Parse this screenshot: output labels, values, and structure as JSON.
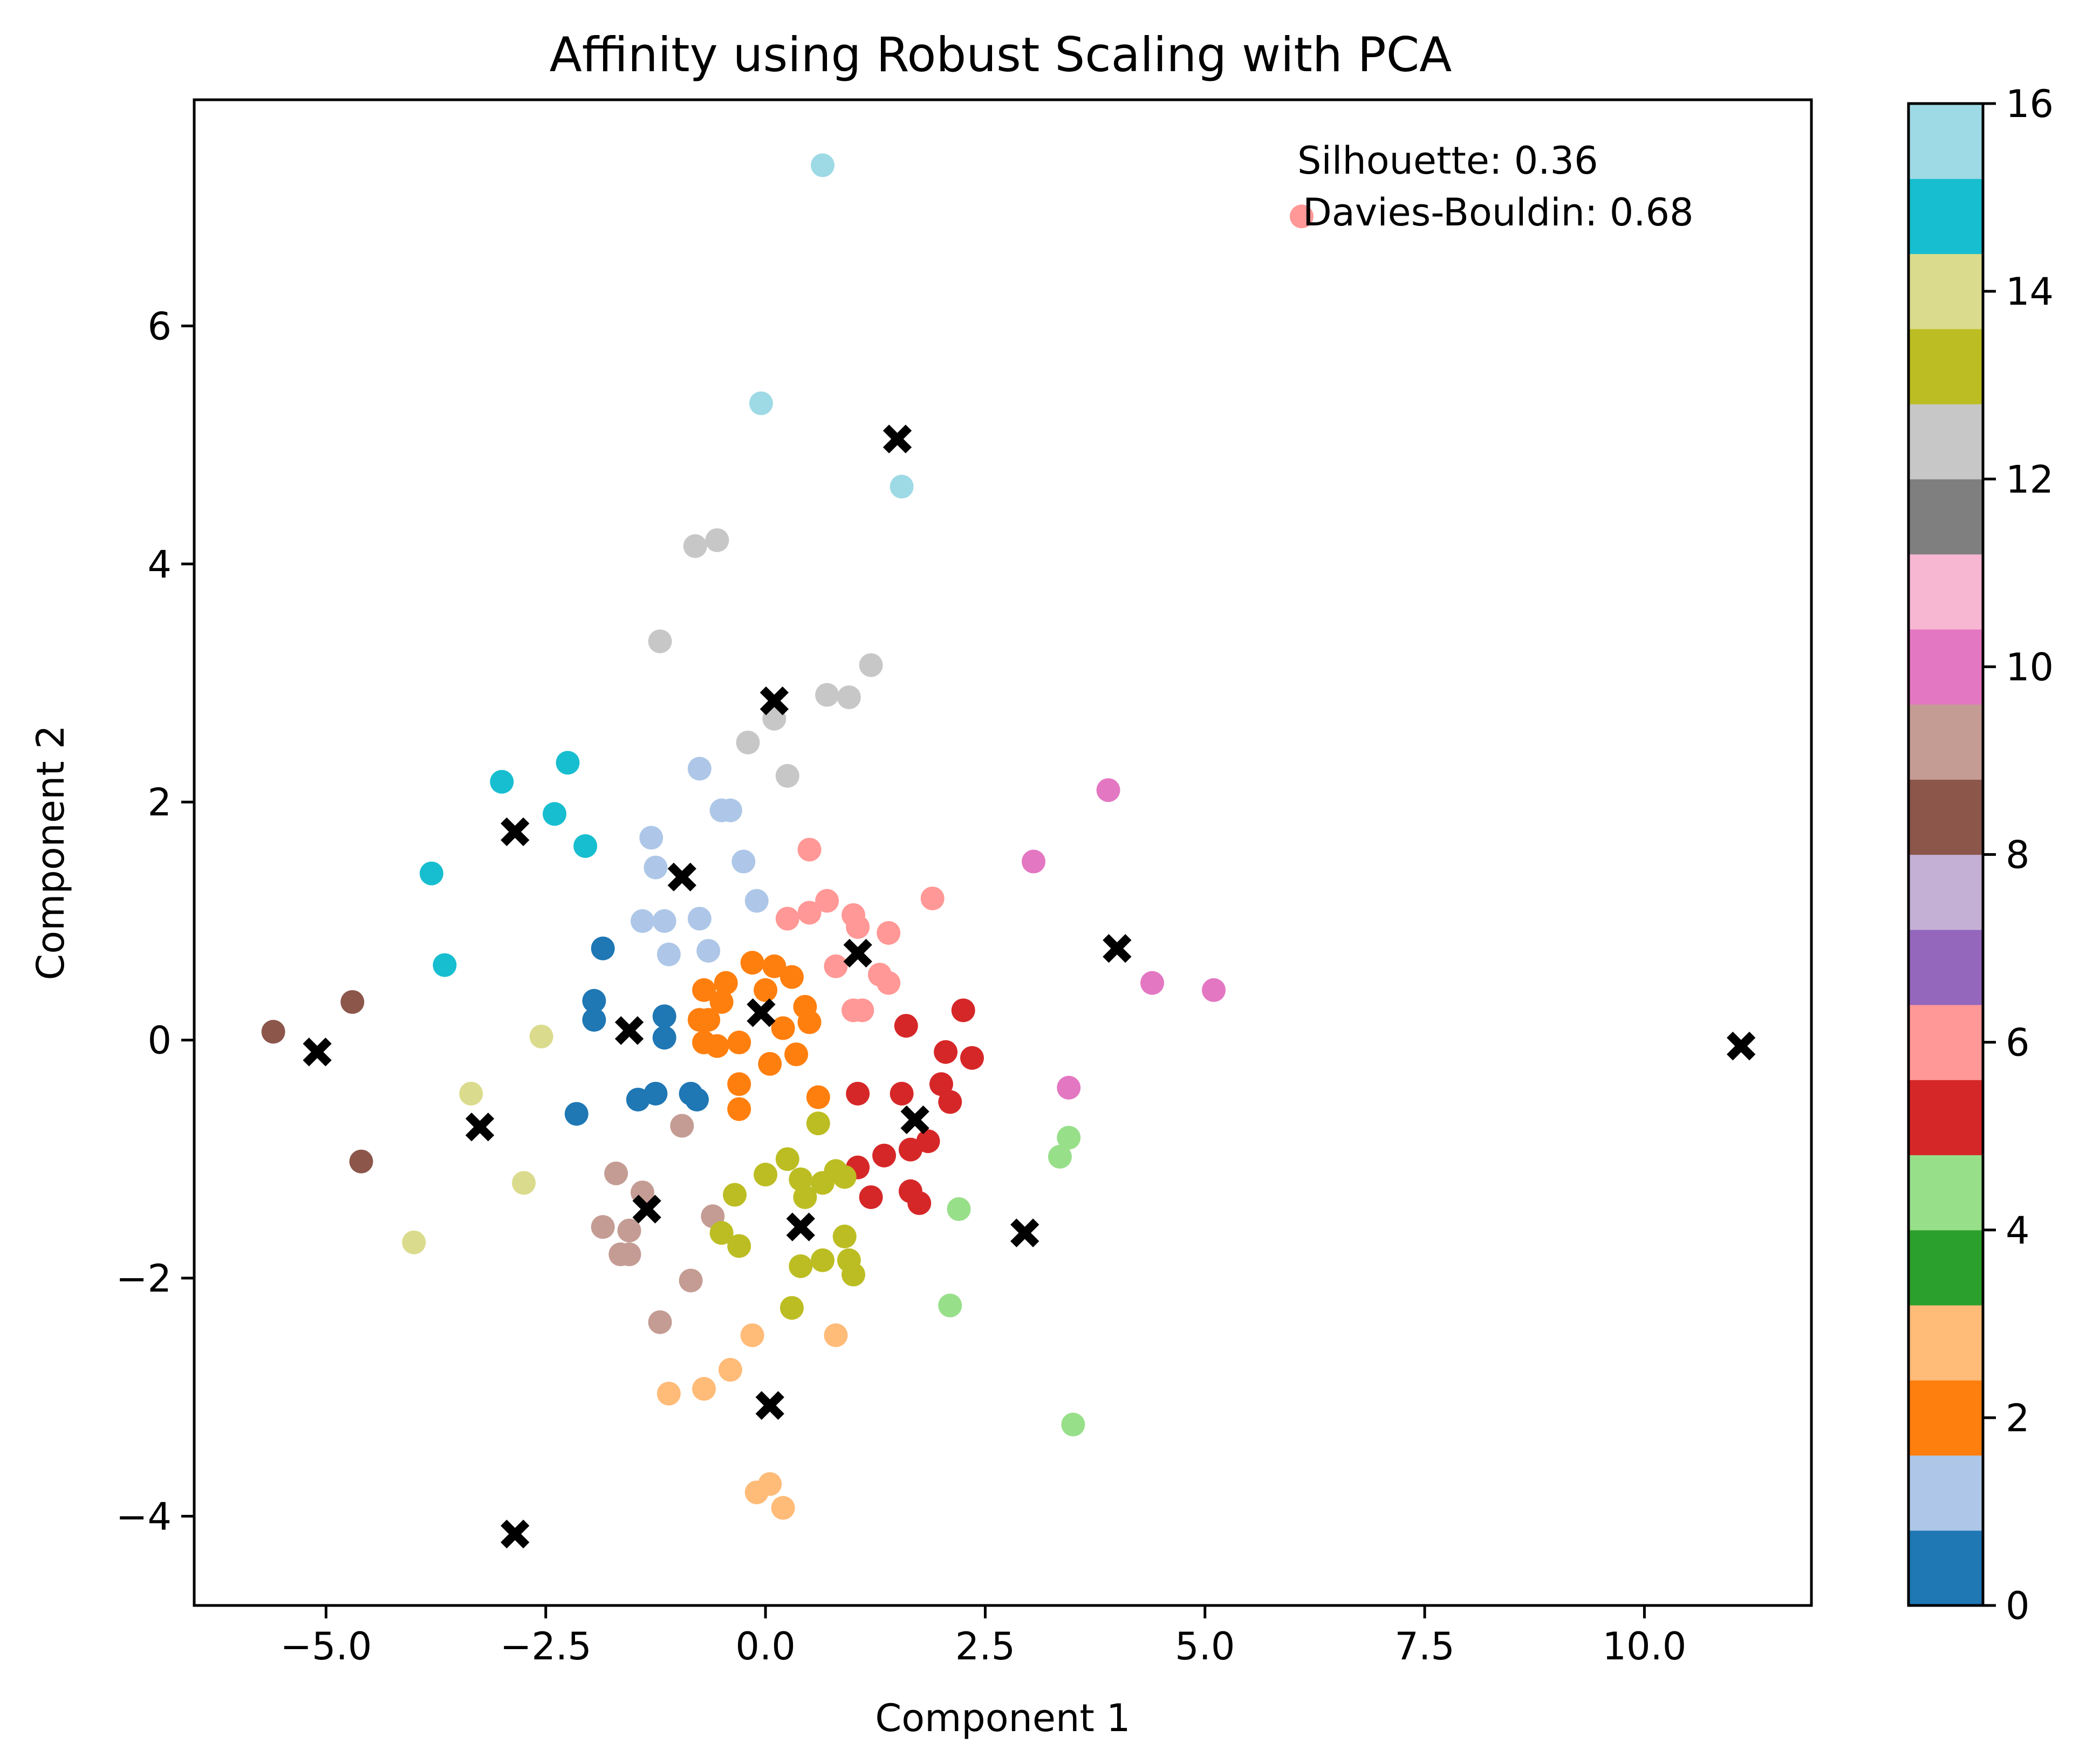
{
  "chart_data": {
    "type": "scatter",
    "title": "Affinity using Robust Scaling with PCA",
    "xlabel": "Component 1",
    "ylabel": "Component 2",
    "xlim": [
      -6.5,
      11.9
    ],
    "ylim": [
      -4.75,
      7.9
    ],
    "xticks": [
      -5.0,
      -2.5,
      0.0,
      2.5,
      5.0,
      7.5,
      10.0
    ],
    "xtick_labels": [
      "−5.0",
      "−2.5",
      "0.0",
      "2.5",
      "5.0",
      "7.5",
      "10.0"
    ],
    "yticks": [
      -4,
      -2,
      0,
      2,
      4,
      6
    ],
    "ytick_labels": [
      "−4",
      "−2",
      "0",
      "2",
      "4",
      "6"
    ],
    "grid": false,
    "colormap": "tab20",
    "colorbar": {
      "range": [
        0,
        16
      ],
      "ticks": [
        0,
        2,
        4,
        6,
        8,
        10,
        12,
        14,
        16
      ],
      "tick_labels": [
        "0",
        "2",
        "4",
        "6",
        "8",
        "10",
        "12",
        "14",
        "16"
      ],
      "colors": [
        "#1f77b4",
        "#aec7e8",
        "#ff7f0e",
        "#ffbb78",
        "#2ca02c",
        "#98df8a",
        "#d62728",
        "#ff9896",
        "#9467bd",
        "#c5b0d5",
        "#8c564b",
        "#c49c94",
        "#e377c2",
        "#f7b6d2",
        "#7f7f7f",
        "#c7c7c7",
        "#bcbd22",
        "#dbdb8d",
        "#17becf",
        "#9edae5"
      ]
    },
    "annotations": [
      "Silhouette: 0.36",
      "Davies-Bouldin: 0.68"
    ],
    "cluster_colors": {
      "0": "#1f77b4",
      "1": "#aec7e8",
      "2": "#ff7f0e",
      "3": "#ffbb78",
      "4": "#98df8a",
      "5": "#d62728",
      "6": "#ff9896",
      "8": "#8c564b",
      "9": "#c49c94",
      "10": "#e377c2",
      "12": "#c7c7c7",
      "13": "#bcbd22",
      "14": "#dbdb8d",
      "15": "#17becf",
      "16": "#9edae5"
    },
    "points": [
      {
        "x": 0.65,
        "y": 7.35,
        "c": 16
      },
      {
        "x": -0.05,
        "y": 5.35,
        "c": 16
      },
      {
        "x": 1.55,
        "y": 4.65,
        "c": 16
      },
      {
        "x": 6.1,
        "y": 6.92,
        "c": 6
      },
      {
        "x": -0.8,
        "y": 4.15,
        "c": 12
      },
      {
        "x": -0.55,
        "y": 4.2,
        "c": 12
      },
      {
        "x": -1.2,
        "y": 3.35,
        "c": 12
      },
      {
        "x": 1.2,
        "y": 3.15,
        "c": 12
      },
      {
        "x": 0.7,
        "y": 2.9,
        "c": 12
      },
      {
        "x": 0.95,
        "y": 2.88,
        "c": 12
      },
      {
        "x": -0.2,
        "y": 2.5,
        "c": 12
      },
      {
        "x": 0.1,
        "y": 2.7,
        "c": 12
      },
      {
        "x": 0.25,
        "y": 2.22,
        "c": 12
      },
      {
        "x": -3.0,
        "y": 2.17,
        "c": 15
      },
      {
        "x": -2.25,
        "y": 2.33,
        "c": 15
      },
      {
        "x": -2.4,
        "y": 1.9,
        "c": 15
      },
      {
        "x": -2.05,
        "y": 1.63,
        "c": 15
      },
      {
        "x": -3.8,
        "y": 1.4,
        "c": 15
      },
      {
        "x": -3.65,
        "y": 0.63,
        "c": 15
      },
      {
        "x": -0.75,
        "y": 2.28,
        "c": 1
      },
      {
        "x": -0.5,
        "y": 1.93,
        "c": 1
      },
      {
        "x": -0.4,
        "y": 1.93,
        "c": 1
      },
      {
        "x": -1.3,
        "y": 1.7,
        "c": 1
      },
      {
        "x": -1.25,
        "y": 1.45,
        "c": 1
      },
      {
        "x": -0.25,
        "y": 1.5,
        "c": 1
      },
      {
        "x": -0.1,
        "y": 1.17,
        "c": 1
      },
      {
        "x": -1.4,
        "y": 1.0,
        "c": 1
      },
      {
        "x": -1.15,
        "y": 1.0,
        "c": 1
      },
      {
        "x": -0.75,
        "y": 1.02,
        "c": 1
      },
      {
        "x": -1.1,
        "y": 0.72,
        "c": 1
      },
      {
        "x": -0.65,
        "y": 0.75,
        "c": 1
      },
      {
        "x": 3.9,
        "y": 2.1,
        "c": 10
      },
      {
        "x": 3.05,
        "y": 1.5,
        "c": 10
      },
      {
        "x": 4.4,
        "y": 0.48,
        "c": 10
      },
      {
        "x": 5.1,
        "y": 0.42,
        "c": 10
      },
      {
        "x": 3.45,
        "y": -0.4,
        "c": 10
      },
      {
        "x": 0.5,
        "y": 1.6,
        "c": 6
      },
      {
        "x": 0.25,
        "y": 1.02,
        "c": 6
      },
      {
        "x": 0.5,
        "y": 1.07,
        "c": 6
      },
      {
        "x": 0.7,
        "y": 1.17,
        "c": 6
      },
      {
        "x": 1.0,
        "y": 1.05,
        "c": 6
      },
      {
        "x": 1.05,
        "y": 0.95,
        "c": 6
      },
      {
        "x": 1.4,
        "y": 0.9,
        "c": 6
      },
      {
        "x": 1.9,
        "y": 1.19,
        "c": 6
      },
      {
        "x": 0.8,
        "y": 0.62,
        "c": 6
      },
      {
        "x": 1.3,
        "y": 0.55,
        "c": 6
      },
      {
        "x": 1.4,
        "y": 0.48,
        "c": 6
      },
      {
        "x": 1.0,
        "y": 0.25,
        "c": 6
      },
      {
        "x": 1.1,
        "y": 0.25,
        "c": 6
      },
      {
        "x": -1.85,
        "y": 0.77,
        "c": 0
      },
      {
        "x": -1.95,
        "y": 0.33,
        "c": 0
      },
      {
        "x": -1.95,
        "y": 0.17,
        "c": 0
      },
      {
        "x": -1.15,
        "y": 0.2,
        "c": 0
      },
      {
        "x": -1.15,
        "y": 0.02,
        "c": 0
      },
      {
        "x": -1.45,
        "y": -0.5,
        "c": 0
      },
      {
        "x": -1.25,
        "y": -0.45,
        "c": 0
      },
      {
        "x": -0.85,
        "y": -0.45,
        "c": 0
      },
      {
        "x": -0.78,
        "y": -0.5,
        "c": 0
      },
      {
        "x": -2.15,
        "y": -0.62,
        "c": 0
      },
      {
        "x": -0.7,
        "y": 0.42,
        "c": 2
      },
      {
        "x": -0.45,
        "y": 0.48,
        "c": 2
      },
      {
        "x": -0.5,
        "y": 0.32,
        "c": 2
      },
      {
        "x": -0.15,
        "y": 0.65,
        "c": 2
      },
      {
        "x": 0.1,
        "y": 0.62,
        "c": 2
      },
      {
        "x": 0.3,
        "y": 0.53,
        "c": 2
      },
      {
        "x": 0.0,
        "y": 0.42,
        "c": 2
      },
      {
        "x": -0.75,
        "y": 0.17,
        "c": 2
      },
      {
        "x": -0.65,
        "y": 0.17,
        "c": 2
      },
      {
        "x": 0.45,
        "y": 0.28,
        "c": 2
      },
      {
        "x": 0.2,
        "y": 0.1,
        "c": 2
      },
      {
        "x": 0.5,
        "y": 0.15,
        "c": 2
      },
      {
        "x": -0.7,
        "y": -0.02,
        "c": 2
      },
      {
        "x": -0.55,
        "y": -0.05,
        "c": 2
      },
      {
        "x": -0.3,
        "y": -0.02,
        "c": 2
      },
      {
        "x": 0.35,
        "y": -0.12,
        "c": 2
      },
      {
        "x": 0.05,
        "y": -0.2,
        "c": 2
      },
      {
        "x": -0.3,
        "y": -0.37,
        "c": 2
      },
      {
        "x": -0.3,
        "y": -0.58,
        "c": 2
      },
      {
        "x": 0.6,
        "y": -0.48,
        "c": 2
      },
      {
        "x": -4.7,
        "y": 0.32,
        "c": 8
      },
      {
        "x": -5.6,
        "y": 0.07,
        "c": 8
      },
      {
        "x": -4.6,
        "y": -1.02,
        "c": 8
      },
      {
        "x": -2.55,
        "y": 0.03,
        "c": 14
      },
      {
        "x": -3.35,
        "y": -0.45,
        "c": 14
      },
      {
        "x": -2.75,
        "y": -1.2,
        "c": 14
      },
      {
        "x": -4.0,
        "y": -1.7,
        "c": 14
      },
      {
        "x": 1.6,
        "y": 0.12,
        "c": 5
      },
      {
        "x": 2.25,
        "y": 0.25,
        "c": 5
      },
      {
        "x": 2.05,
        "y": -0.1,
        "c": 5
      },
      {
        "x": 2.35,
        "y": -0.15,
        "c": 5
      },
      {
        "x": 2.0,
        "y": -0.37,
        "c": 5
      },
      {
        "x": 2.1,
        "y": -0.52,
        "c": 5
      },
      {
        "x": 1.05,
        "y": -0.45,
        "c": 5
      },
      {
        "x": 1.55,
        "y": -0.45,
        "c": 5
      },
      {
        "x": 1.85,
        "y": -0.85,
        "c": 5
      },
      {
        "x": 1.65,
        "y": -0.92,
        "c": 5
      },
      {
        "x": 1.35,
        "y": -0.97,
        "c": 5
      },
      {
        "x": 1.05,
        "y": -1.07,
        "c": 5
      },
      {
        "x": 1.2,
        "y": -1.32,
        "c": 5
      },
      {
        "x": 1.65,
        "y": -1.27,
        "c": 5
      },
      {
        "x": 1.75,
        "y": -1.37,
        "c": 5
      },
      {
        "x": 3.45,
        "y": -0.82,
        "c": 4
      },
      {
        "x": 3.35,
        "y": -0.98,
        "c": 4
      },
      {
        "x": 2.2,
        "y": -1.42,
        "c": 4
      },
      {
        "x": 2.1,
        "y": -2.23,
        "c": 4
      },
      {
        "x": 3.5,
        "y": -3.23,
        "c": 4
      },
      {
        "x": -0.95,
        "y": -0.72,
        "c": 9
      },
      {
        "x": -1.7,
        "y": -1.12,
        "c": 9
      },
      {
        "x": -1.4,
        "y": -1.28,
        "c": 9
      },
      {
        "x": -1.85,
        "y": -1.57,
        "c": 9
      },
      {
        "x": -1.55,
        "y": -1.6,
        "c": 9
      },
      {
        "x": -1.65,
        "y": -1.8,
        "c": 9
      },
      {
        "x": -1.55,
        "y": -1.8,
        "c": 9
      },
      {
        "x": -0.6,
        "y": -1.48,
        "c": 9
      },
      {
        "x": -0.85,
        "y": -2.02,
        "c": 9
      },
      {
        "x": -1.2,
        "y": -2.37,
        "c": 9
      },
      {
        "x": 0.6,
        "y": -0.7,
        "c": 13
      },
      {
        "x": 0.25,
        "y": -1.0,
        "c": 13
      },
      {
        "x": 0.0,
        "y": -1.13,
        "c": 13
      },
      {
        "x": 0.4,
        "y": -1.17,
        "c": 13
      },
      {
        "x": 0.45,
        "y": -1.32,
        "c": 13
      },
      {
        "x": 0.65,
        "y": -1.2,
        "c": 13
      },
      {
        "x": 0.8,
        "y": -1.1,
        "c": 13
      },
      {
        "x": 0.9,
        "y": -1.15,
        "c": 13
      },
      {
        "x": -0.35,
        "y": -1.3,
        "c": 13
      },
      {
        "x": -0.5,
        "y": -1.62,
        "c": 13
      },
      {
        "x": -0.3,
        "y": -1.73,
        "c": 13
      },
      {
        "x": 0.9,
        "y": -1.65,
        "c": 13
      },
      {
        "x": 0.4,
        "y": -1.9,
        "c": 13
      },
      {
        "x": 0.65,
        "y": -1.85,
        "c": 13
      },
      {
        "x": 0.95,
        "y": -1.85,
        "c": 13
      },
      {
        "x": 1.0,
        "y": -1.97,
        "c": 13
      },
      {
        "x": 0.3,
        "y": -2.25,
        "c": 13
      },
      {
        "x": -0.15,
        "y": -2.48,
        "c": 3
      },
      {
        "x": 0.8,
        "y": -2.48,
        "c": 3
      },
      {
        "x": -0.4,
        "y": -2.77,
        "c": 3
      },
      {
        "x": -1.1,
        "y": -2.97,
        "c": 3
      },
      {
        "x": -0.7,
        "y": -2.93,
        "c": 3
      },
      {
        "x": -0.1,
        "y": -3.8,
        "c": 3
      },
      {
        "x": 0.05,
        "y": -3.73,
        "c": 3
      },
      {
        "x": 0.2,
        "y": -3.93,
        "c": 3
      }
    ],
    "centers": [
      {
        "x": 1.5,
        "y": 5.05
      },
      {
        "x": 0.1,
        "y": 2.85
      },
      {
        "x": -2.85,
        "y": 1.75
      },
      {
        "x": -0.95,
        "y": 1.37
      },
      {
        "x": 4.0,
        "y": 0.77
      },
      {
        "x": 1.05,
        "y": 0.73
      },
      {
        "x": -0.05,
        "y": 0.23
      },
      {
        "x": -1.55,
        "y": 0.08
      },
      {
        "x": -5.1,
        "y": -0.1
      },
      {
        "x": 11.1,
        "y": -0.05
      },
      {
        "x": -3.25,
        "y": -0.73
      },
      {
        "x": 1.7,
        "y": -0.67
      },
      {
        "x": -1.35,
        "y": -1.42
      },
      {
        "x": 0.4,
        "y": -1.57
      },
      {
        "x": 2.95,
        "y": -1.62
      },
      {
        "x": 0.05,
        "y": -3.07
      },
      {
        "x": -2.85,
        "y": -4.15
      }
    ]
  }
}
